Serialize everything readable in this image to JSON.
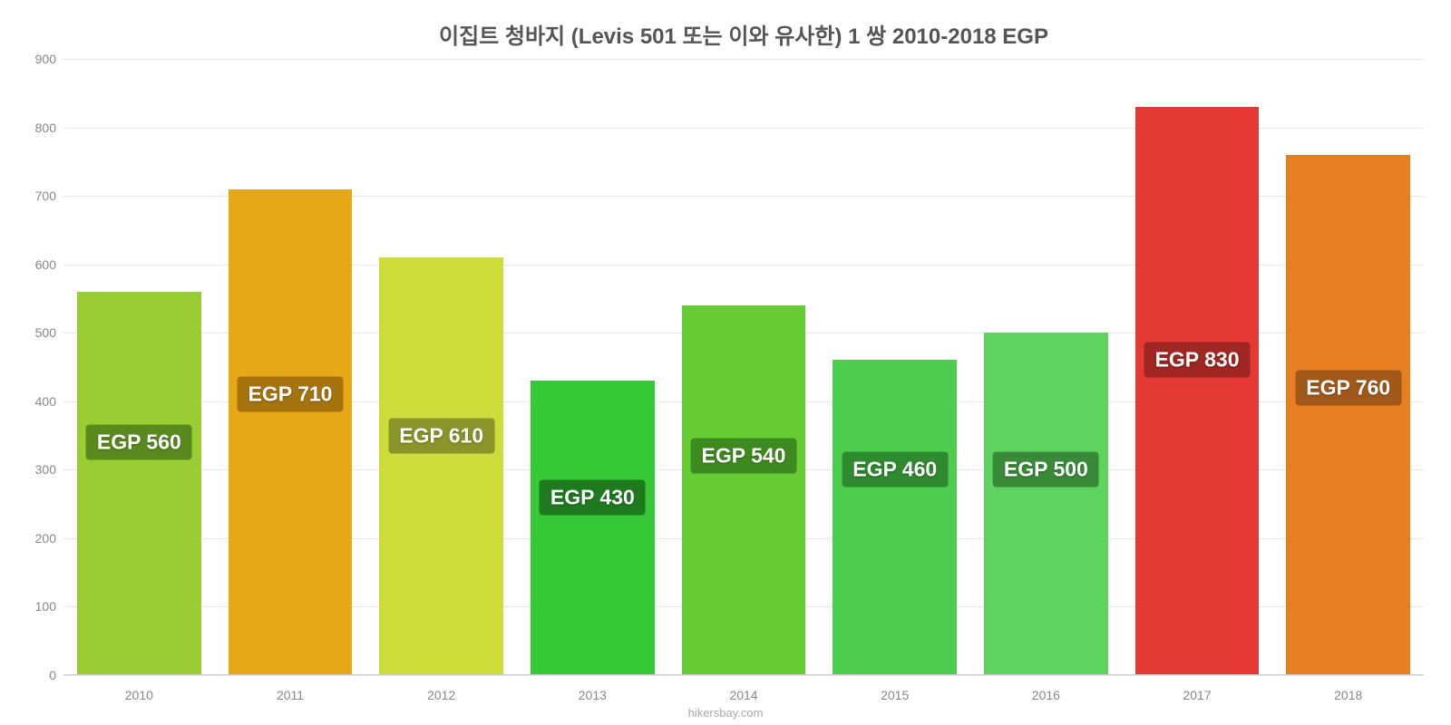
{
  "chart": {
    "type": "bar",
    "title": "이집트 청바지 (Levis 501 또는 이와 유사한) 1 쌍 2010-2018 EGP",
    "title_fontsize": 24,
    "title_color": "#555555",
    "background_color": "#ffffff",
    "grid_color": "#e6e6e6",
    "axis_text_color": "#888888",
    "axis_fontsize": 14,
    "ylim": [
      0,
      900
    ],
    "ytick_step": 100,
    "yticks": [
      0,
      100,
      200,
      300,
      400,
      500,
      600,
      700,
      800,
      900
    ],
    "bar_width_ratio": 0.82,
    "label_fontsize": 23,
    "label_text_color": "#ffffff",
    "categories": [
      "2010",
      "2011",
      "2012",
      "2013",
      "2014",
      "2015",
      "2016",
      "2017",
      "2018"
    ],
    "values": [
      560,
      710,
      610,
      430,
      540,
      460,
      500,
      830,
      760
    ],
    "bar_labels": [
      "EGP 560",
      "EGP 710",
      "EGP 610",
      "EGP 430",
      "EGP 540",
      "EGP 460",
      "EGP 500",
      "EGP 830",
      "EGP 760"
    ],
    "bar_colors": [
      "#9acd32",
      "#e6a817",
      "#cddc39",
      "#37c837",
      "#66cc33",
      "#4ecc4e",
      "#5fd35f",
      "#e53935",
      "#e67e22"
    ],
    "label_bg_colors": [
      "#5a8a1e",
      "#a6730f",
      "#8a9428",
      "#1f7a1f",
      "#3d8a1e",
      "#2e8a2e",
      "#388a38",
      "#a02622",
      "#a15818"
    ],
    "label_y_offsets": [
      340,
      410,
      350,
      260,
      320,
      300,
      300,
      460,
      420
    ],
    "source_text": "hikersbay.com",
    "source_color": "#aaaaaa",
    "source_fontsize": 13
  }
}
